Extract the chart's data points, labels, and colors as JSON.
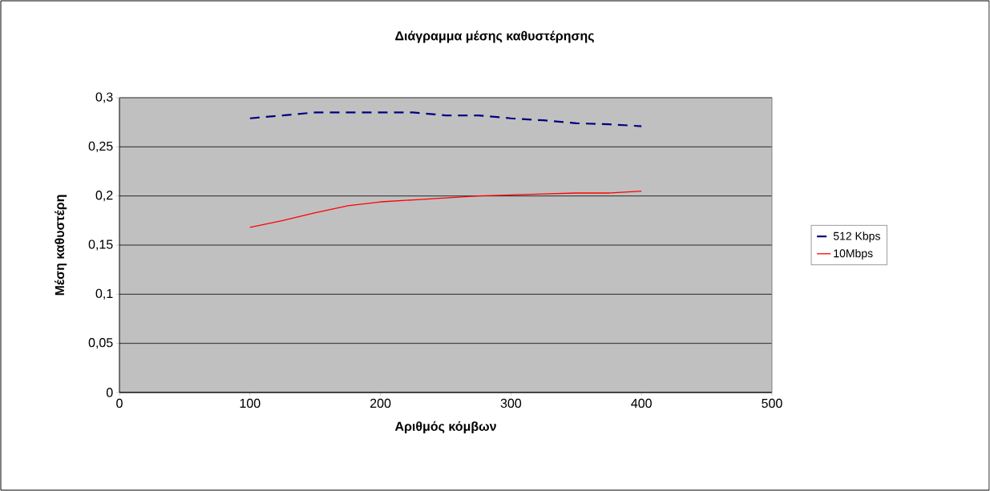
{
  "chart_data": {
    "type": "line",
    "title": "Διάγραμμα μέσης καθυστέρησης",
    "xlabel": "Αριθμός κόμβων",
    "ylabel": "Μέση καθυστέρη",
    "x": [
      100,
      125,
      150,
      175,
      200,
      225,
      250,
      275,
      300,
      325,
      350,
      375,
      400
    ],
    "series": [
      {
        "name": "512 Kbps",
        "color": "#000080",
        "line_style": "dashed",
        "values": [
          0.279,
          0.282,
          0.285,
          0.285,
          0.285,
          0.285,
          0.282,
          0.282,
          0.279,
          0.277,
          0.274,
          0.273,
          0.271
        ]
      },
      {
        "name": "10Mbps",
        "color": "#ff0000",
        "line_style": "solid",
        "values": [
          0.168,
          0.175,
          0.183,
          0.19,
          0.194,
          0.196,
          0.198,
          0.2,
          0.201,
          0.202,
          0.203,
          0.203,
          0.205
        ]
      }
    ],
    "xlim": [
      0,
      500
    ],
    "xticks": [
      0,
      100,
      200,
      300,
      400,
      500
    ],
    "ylim": [
      0,
      0.3
    ],
    "yticks": [
      {
        "value": 0,
        "label": "0"
      },
      {
        "value": 0.05,
        "label": "0,05"
      },
      {
        "value": 0.1,
        "label": "0,1"
      },
      {
        "value": 0.15,
        "label": "0,15"
      },
      {
        "value": 0.2,
        "label": "0,2"
      },
      {
        "value": 0.25,
        "label": "0,25"
      },
      {
        "value": 0.3,
        "label": "0,3"
      }
    ],
    "grid": "y",
    "legend": "right",
    "marker": "none"
  }
}
